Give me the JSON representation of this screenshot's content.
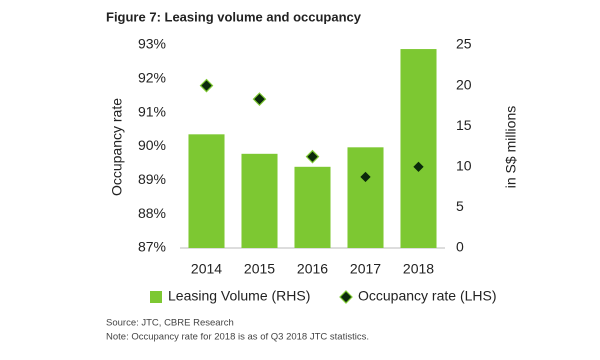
{
  "chart_data": {
    "type": "bar",
    "title": "Figure 7: Leasing volume and occupancy",
    "categories": [
      "2014",
      "2015",
      "2016",
      "2017",
      "2018"
    ],
    "series": [
      {
        "name": "Leasing Volume (RHS)",
        "type": "bar",
        "axis": "y2",
        "color": "#7dc832",
        "values": [
          14.0,
          11.6,
          10.0,
          12.4,
          24.5
        ]
      },
      {
        "name": "Occupancy rate (LHS)",
        "type": "scatter",
        "axis": "y",
        "color": "#0b2a0b",
        "values": [
          91.8,
          91.4,
          89.7,
          89.1,
          89.4
        ]
      }
    ],
    "y_label": "Occupancy rate",
    "y2_label": "in S$ millions",
    "ylim": [
      87,
      93
    ],
    "yticks": [
      {
        "value": 87,
        "label": "87%"
      },
      {
        "value": 88,
        "label": "88%"
      },
      {
        "value": 89,
        "label": "89%"
      },
      {
        "value": 90,
        "label": "90%"
      },
      {
        "value": 91,
        "label": "91%"
      },
      {
        "value": 92,
        "label": "92%"
      },
      {
        "value": 93,
        "label": "93%"
      }
    ],
    "y2lim": [
      0,
      25
    ],
    "y2ticks": [
      0,
      5,
      10,
      15,
      20,
      25
    ],
    "grid": false,
    "legend": "bottom",
    "source": "Source: JTC, CBRE Research",
    "note": "Note: Occupancy rate for 2018 is as of Q3 2018 JTC statistics."
  }
}
